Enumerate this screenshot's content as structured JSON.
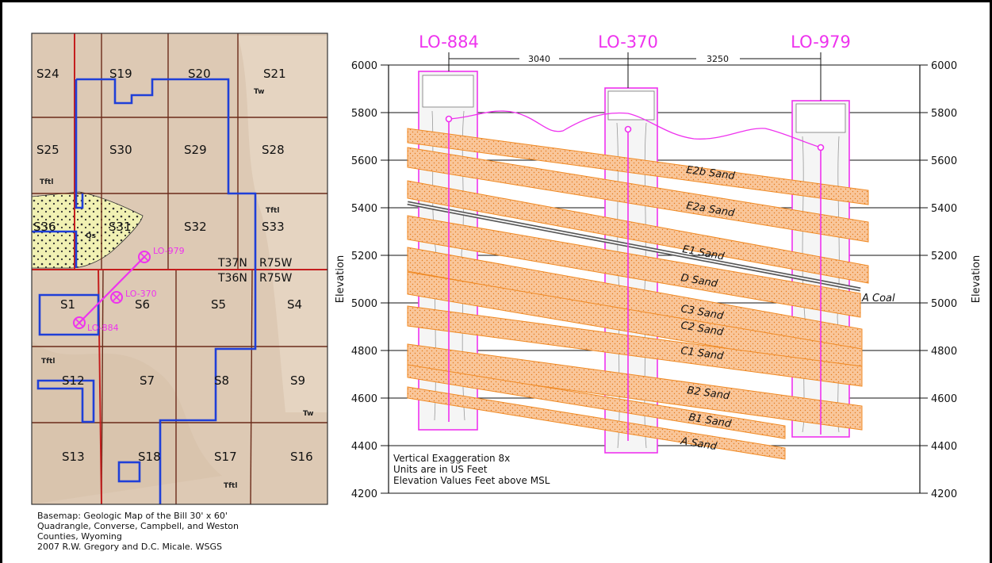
{
  "map": {
    "sections": [
      {
        "id": "s24",
        "label": "S24"
      },
      {
        "id": "s19",
        "label": "S19"
      },
      {
        "id": "s20",
        "label": "S20"
      },
      {
        "id": "s21",
        "label": "S21"
      },
      {
        "id": "s25",
        "label": "S25"
      },
      {
        "id": "s30",
        "label": "S30"
      },
      {
        "id": "s29",
        "label": "S29"
      },
      {
        "id": "s28",
        "label": "S28"
      },
      {
        "id": "s36",
        "label": "S36"
      },
      {
        "id": "s31",
        "label": "S31"
      },
      {
        "id": "s32",
        "label": "S32"
      },
      {
        "id": "s33",
        "label": "S33"
      },
      {
        "id": "s1",
        "label": "S1"
      },
      {
        "id": "s6",
        "label": "S6"
      },
      {
        "id": "s5",
        "label": "S5"
      },
      {
        "id": "s4",
        "label": "S4"
      },
      {
        "id": "s12",
        "label": "S12"
      },
      {
        "id": "s7",
        "label": "S7"
      },
      {
        "id": "s8",
        "label": "S8"
      },
      {
        "id": "s9",
        "label": "S9"
      },
      {
        "id": "s13",
        "label": "S13"
      },
      {
        "id": "s18",
        "label": "S18"
      },
      {
        "id": "s17",
        "label": "S17"
      },
      {
        "id": "s16",
        "label": "S16"
      }
    ],
    "unit_labels": [
      "Tw",
      "Tftl",
      "Tftl",
      "Qs",
      "Tftl",
      "Tw",
      "Tftl"
    ],
    "township_north": "T37N",
    "range_north": "R75W",
    "township_south": "T36N",
    "range_south": "R75W",
    "wells": [
      "LO-979",
      "LO-370",
      "LO-884"
    ],
    "caption_lines": [
      "Basemap: Geologic Map of the Bill 30' x 60'",
      "Quadrangle, Converse, Campbell, and Weston",
      "Counties, Wyoming",
      "2007   R.W. Gregory and D.C. Micale.   WSGS"
    ],
    "colors": {
      "base": "#ddc9b4",
      "township_line": "#c41e1e",
      "boundary": "#1f3fd8",
      "well": "#ee33ee",
      "alluvium": "#f1f1b3"
    }
  },
  "section": {
    "wells": [
      {
        "name": "LO-884",
        "spacing_to_next": "3040"
      },
      {
        "name": "LO-370",
        "spacing_to_next": "3250"
      },
      {
        "name": "LO-979",
        "spacing_to_next": ""
      }
    ],
    "y_ticks": [
      "6000",
      "5800",
      "5600",
      "5400",
      "5200",
      "5000",
      "4800",
      "4600",
      "4400",
      "4200"
    ],
    "axis_label": "Elevation",
    "sands": [
      "E2b Sand",
      "E2a Sand",
      "E1 Sand",
      "D Sand",
      "C3 Sand",
      "C2 Sand",
      "C1 Sand",
      "B2 Sand",
      "B1 Sand",
      "A Sand"
    ],
    "coal_label": "A  Coal",
    "notes": [
      "Vertical Exaggeration 8x",
      "Units are in US Feet",
      "Elevation Values Feet above MSL"
    ],
    "colors": {
      "sand_fill": "#f9c69a",
      "sand_edge": "#f08a24",
      "well_line": "#ee33ee",
      "coal": "#555555"
    }
  }
}
